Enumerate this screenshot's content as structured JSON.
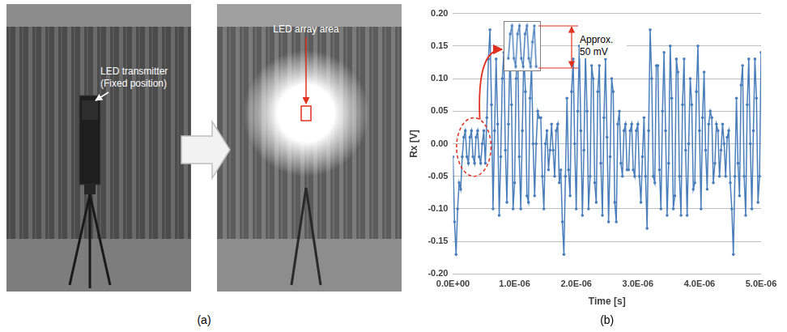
{
  "panel_a": {
    "panel_label": "(a)",
    "images": [
      {
        "text": [
          "LED transmitter",
          "(Fixed position)"
        ]
      },
      {
        "text": [
          "LED array area"
        ]
      }
    ]
  },
  "chart_data": {
    "panel_label": "(b)",
    "type": "line",
    "x_label": "Time [s]",
    "y_label": "Rx [V]",
    "xlim": [
      0,
      5e-06
    ],
    "xticks": [
      {
        "value": 0,
        "label": "0.0E+00"
      },
      {
        "value": 1e-06,
        "label": "1.0E-06"
      },
      {
        "value": 2e-06,
        "label": "2.0E-06"
      },
      {
        "value": 3e-06,
        "label": "3.0E-06"
      },
      {
        "value": 4e-06,
        "label": "4.0E-06"
      },
      {
        "value": 5e-06,
        "label": "5.0E-06"
      }
    ],
    "ylim": [
      -0.2,
      0.2
    ],
    "yticks": [
      {
        "value": -0.2,
        "label": "-0.20"
      },
      {
        "value": -0.15,
        "label": "-0.15"
      },
      {
        "value": -0.1,
        "label": "-0.10"
      },
      {
        "value": -0.05,
        "label": "-0.05"
      },
      {
        "value": 0,
        "label": "0.00"
      },
      {
        "value": 0.05,
        "label": "0.05"
      },
      {
        "value": 0.1,
        "label": "0.10"
      },
      {
        "value": 0.15,
        "label": "0.15"
      },
      {
        "value": 0.2,
        "label": "0.20"
      }
    ],
    "grid": "y",
    "x": [
      0.0,
      2.5e-08,
      5e-08,
      7.5e-08,
      1e-07,
      1.25e-07,
      1.5e-07,
      1.75e-07,
      2e-07,
      2.25e-07,
      2.5e-07,
      2.75e-07,
      3e-07,
      3.25e-07,
      3.5e-07,
      3.75e-07,
      4e-07,
      4.25e-07,
      4.5e-07,
      4.75e-07,
      5e-07,
      5.25e-07,
      5.5e-07,
      5.75e-07,
      6e-07,
      6.25e-07,
      6.5e-07,
      6.75e-07,
      7e-07,
      7.25e-07,
      7.5e-07,
      7.75e-07,
      8e-07,
      8.25e-07,
      8.5e-07,
      8.75e-07,
      9e-07,
      9.25e-07,
      9.5e-07,
      9.75e-07,
      1e-06,
      1.025e-06,
      1.05e-06,
      1.075e-06,
      1.1e-06,
      1.125e-06,
      1.15e-06,
      1.175e-06,
      1.2e-06,
      1.225e-06,
      1.25e-06,
      1.275e-06,
      1.3e-06,
      1.325e-06,
      1.35e-06,
      1.375e-06,
      1.4e-06,
      1.425e-06,
      1.45e-06,
      1.475e-06,
      1.5e-06,
      1.525e-06,
      1.55e-06,
      1.575e-06,
      1.6e-06,
      1.625e-06,
      1.65e-06,
      1.675e-06,
      1.7e-06,
      1.725e-06,
      1.75e-06,
      1.775e-06,
      1.8e-06,
      1.825e-06,
      1.85e-06,
      1.875e-06,
      1.9e-06,
      1.925e-06,
      1.95e-06,
      1.975e-06,
      2e-06,
      2.025e-06,
      2.05e-06,
      2.075e-06,
      2.1e-06,
      2.125e-06,
      2.15e-06,
      2.175e-06,
      2.2e-06,
      2.225e-06,
      2.25e-06,
      2.275e-06,
      2.3e-06,
      2.325e-06,
      2.35e-06,
      2.375e-06,
      2.4e-06,
      2.425e-06,
      2.45e-06,
      2.475e-06,
      2.5e-06,
      2.525e-06,
      2.55e-06,
      2.575e-06,
      2.6e-06,
      2.625e-06,
      2.65e-06,
      2.675e-06,
      2.7e-06,
      2.725e-06,
      2.75e-06,
      2.775e-06,
      2.8e-06,
      2.825e-06,
      2.85e-06,
      2.875e-06,
      2.9e-06,
      2.925e-06,
      2.95e-06,
      2.975e-06,
      3e-06,
      3.025e-06,
      3.05e-06,
      3.075e-06,
      3.1e-06,
      3.125e-06,
      3.15e-06,
      3.175e-06,
      3.2e-06,
      3.225e-06,
      3.25e-06,
      3.275e-06,
      3.3e-06,
      3.325e-06,
      3.35e-06,
      3.375e-06,
      3.4e-06,
      3.425e-06,
      3.45e-06,
      3.475e-06,
      3.5e-06,
      3.525e-06,
      3.55e-06,
      3.575e-06,
      3.6e-06,
      3.625e-06,
      3.65e-06,
      3.675e-06,
      3.7e-06,
      3.725e-06,
      3.75e-06,
      3.775e-06,
      3.8e-06,
      3.825e-06,
      3.85e-06,
      3.875e-06,
      3.9e-06,
      3.925e-06,
      3.95e-06,
      3.975e-06,
      4e-06,
      4.025e-06,
      4.05e-06,
      4.075e-06,
      4.1e-06,
      4.125e-06,
      4.15e-06,
      4.175e-06,
      4.2e-06,
      4.225e-06,
      4.25e-06,
      4.275e-06,
      4.3e-06,
      4.325e-06,
      4.35e-06,
      4.375e-06,
      4.4e-06,
      4.425e-06,
      4.45e-06,
      4.475e-06,
      4.5e-06,
      4.525e-06,
      4.55e-06,
      4.575e-06,
      4.6e-06,
      4.625e-06,
      4.65e-06,
      4.675e-06,
      4.7e-06,
      4.725e-06,
      4.75e-06,
      4.775e-06,
      4.8e-06,
      4.825e-06,
      4.85e-06,
      4.875e-06,
      4.9e-06,
      4.925e-06,
      4.95e-06,
      4.975e-06,
      5e-06
    ],
    "series": [
      {
        "color": "#4a7ebb",
        "marker": "circle",
        "line_style": "solid",
        "values": [
          -0.02,
          -0.12,
          -0.17,
          -0.1,
          -0.06,
          -0.07,
          -0.02,
          0.01,
          0.02,
          -0.02,
          -0.03,
          0.01,
          0.02,
          -0.02,
          -0.03,
          0.01,
          0.02,
          -0.02,
          -0.03,
          0.0,
          0.02,
          -0.03,
          0.04,
          0.13,
          0.175,
          0.06,
          -0.1,
          0.02,
          0.13,
          0.03,
          -0.11,
          -0.02,
          0.1,
          0.14,
          -0.01,
          -0.09,
          0.03,
          0.14,
          0.06,
          -0.1,
          -0.06,
          0.1,
          0.15,
          -0.02,
          -0.1,
          0.02,
          0.14,
          0.08,
          -0.08,
          -0.09,
          0.07,
          0.12,
          0.0,
          -0.08,
          0.0,
          0.05,
          0.04,
          0.04,
          -0.05,
          -0.1,
          0.0,
          0.02,
          -0.04,
          -0.01,
          0.03,
          -0.01,
          -0.05,
          0.02,
          0.03,
          -0.06,
          -0.04,
          -0.12,
          -0.17,
          -0.05,
          0.07,
          -0.04,
          -0.08,
          0.08,
          0.13,
          0.0,
          -0.1,
          0.05,
          0.15,
          0.02,
          -0.11,
          -0.01,
          0.14,
          0.05,
          -0.1,
          -0.05,
          0.12,
          0.1,
          -0.06,
          -0.09,
          0.08,
          0.12,
          -0.03,
          -0.11,
          0.04,
          0.13,
          0.01,
          -0.12,
          -0.02,
          0.1,
          0.08,
          -0.09,
          -0.12,
          0.03,
          0.05,
          -0.03,
          -0.05,
          0.02,
          0.03,
          -0.04,
          -0.04,
          0.02,
          0.03,
          -0.04,
          -0.05,
          0.02,
          0.03,
          -0.05,
          -0.09,
          -0.02,
          0.04,
          -0.05,
          -0.13,
          0.02,
          0.175,
          0.1,
          -0.05,
          -0.06,
          0.12,
          0.12,
          -0.04,
          -0.1,
          0.05,
          0.14,
          0.02,
          -0.11,
          -0.03,
          0.15,
          0.07,
          -0.1,
          -0.08,
          0.13,
          0.11,
          -0.05,
          -0.11,
          0.06,
          0.13,
          -0.01,
          -0.11,
          0.0,
          0.1,
          0.06,
          -0.07,
          -0.06,
          0.08,
          0.15,
          0.02,
          -0.1,
          0.04,
          0.11,
          -0.01,
          -0.07,
          0.03,
          0.05,
          0.04,
          -0.06,
          -0.03,
          0.03,
          0.02,
          -0.05,
          -0.01,
          0.03,
          0.0,
          -0.05,
          0.01,
          0.02,
          -0.06,
          -0.1,
          -0.17,
          -0.05,
          0.07,
          -0.03,
          -0.08,
          0.09,
          0.12,
          -0.05,
          -0.11,
          0.06,
          0.13,
          0.0,
          -0.1,
          0.02,
          0.13,
          0.07,
          -0.09,
          -0.05,
          0.14
        ]
      }
    ],
    "annotations": [
      {
        "text": "Approx. 50 mV",
        "x_range": [
          1.5e-07,
          5.25e-07
        ],
        "y_range": [
          -0.03,
          0.02
        ]
      }
    ]
  }
}
